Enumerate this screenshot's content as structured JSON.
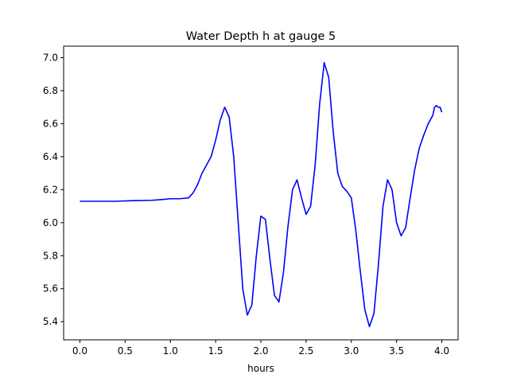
{
  "chart_data": {
    "type": "line",
    "title": "Water Depth h at gauge 5",
    "xlabel": "hours",
    "ylabel": "",
    "xlim": [
      -0.18,
      4.18
    ],
    "ylim": [
      5.29,
      7.07
    ],
    "xticks": [
      0.0,
      0.5,
      1.0,
      1.5,
      2.0,
      2.5,
      3.0,
      3.5,
      4.0
    ],
    "xtick_labels": [
      "0.0",
      "0.5",
      "1.0",
      "1.5",
      "2.0",
      "2.5",
      "3.0",
      "3.5",
      "4.0"
    ],
    "yticks": [
      5.4,
      5.6,
      5.8,
      6.0,
      6.2,
      6.4,
      6.6,
      6.8,
      7.0
    ],
    "ytick_labels": [
      "5.4",
      "5.6",
      "5.8",
      "6.0",
      "6.2",
      "6.4",
      "6.6",
      "6.8",
      "7.0"
    ],
    "grid": false,
    "series": [
      {
        "color": "#0000ff",
        "x": [
          0.0,
          0.2,
          0.4,
          0.6,
          0.8,
          0.9,
          1.0,
          1.1,
          1.2,
          1.25,
          1.3,
          1.35,
          1.4,
          1.45,
          1.5,
          1.55,
          1.6,
          1.65,
          1.7,
          1.75,
          1.8,
          1.85,
          1.9,
          1.95,
          2.0,
          2.05,
          2.1,
          2.15,
          2.2,
          2.25,
          2.3,
          2.35,
          2.4,
          2.45,
          2.5,
          2.55,
          2.6,
          2.65,
          2.7,
          2.75,
          2.8,
          2.85,
          2.9,
          2.95,
          3.0,
          3.05,
          3.1,
          3.15,
          3.2,
          3.25,
          3.3,
          3.35,
          3.4,
          3.45,
          3.5,
          3.55,
          3.6,
          3.65,
          3.7,
          3.75,
          3.8,
          3.85,
          3.9,
          3.92,
          3.94,
          3.96,
          3.98,
          4.0
        ],
        "y": [
          6.13,
          6.13,
          6.13,
          6.134,
          6.136,
          6.14,
          6.145,
          6.145,
          6.15,
          6.18,
          6.23,
          6.3,
          6.35,
          6.4,
          6.5,
          6.62,
          6.7,
          6.64,
          6.4,
          6.0,
          5.6,
          5.44,
          5.5,
          5.8,
          6.04,
          6.02,
          5.78,
          5.56,
          5.52,
          5.7,
          5.98,
          6.2,
          6.26,
          6.15,
          6.05,
          6.1,
          6.35,
          6.72,
          6.97,
          6.88,
          6.55,
          6.3,
          6.22,
          6.19,
          6.15,
          5.95,
          5.7,
          5.47,
          5.37,
          5.45,
          5.75,
          6.1,
          6.26,
          6.2,
          6.0,
          5.92,
          5.97,
          6.15,
          6.32,
          6.45,
          6.53,
          6.6,
          6.65,
          6.7,
          6.71,
          6.7,
          6.7,
          6.67
        ]
      }
    ]
  }
}
